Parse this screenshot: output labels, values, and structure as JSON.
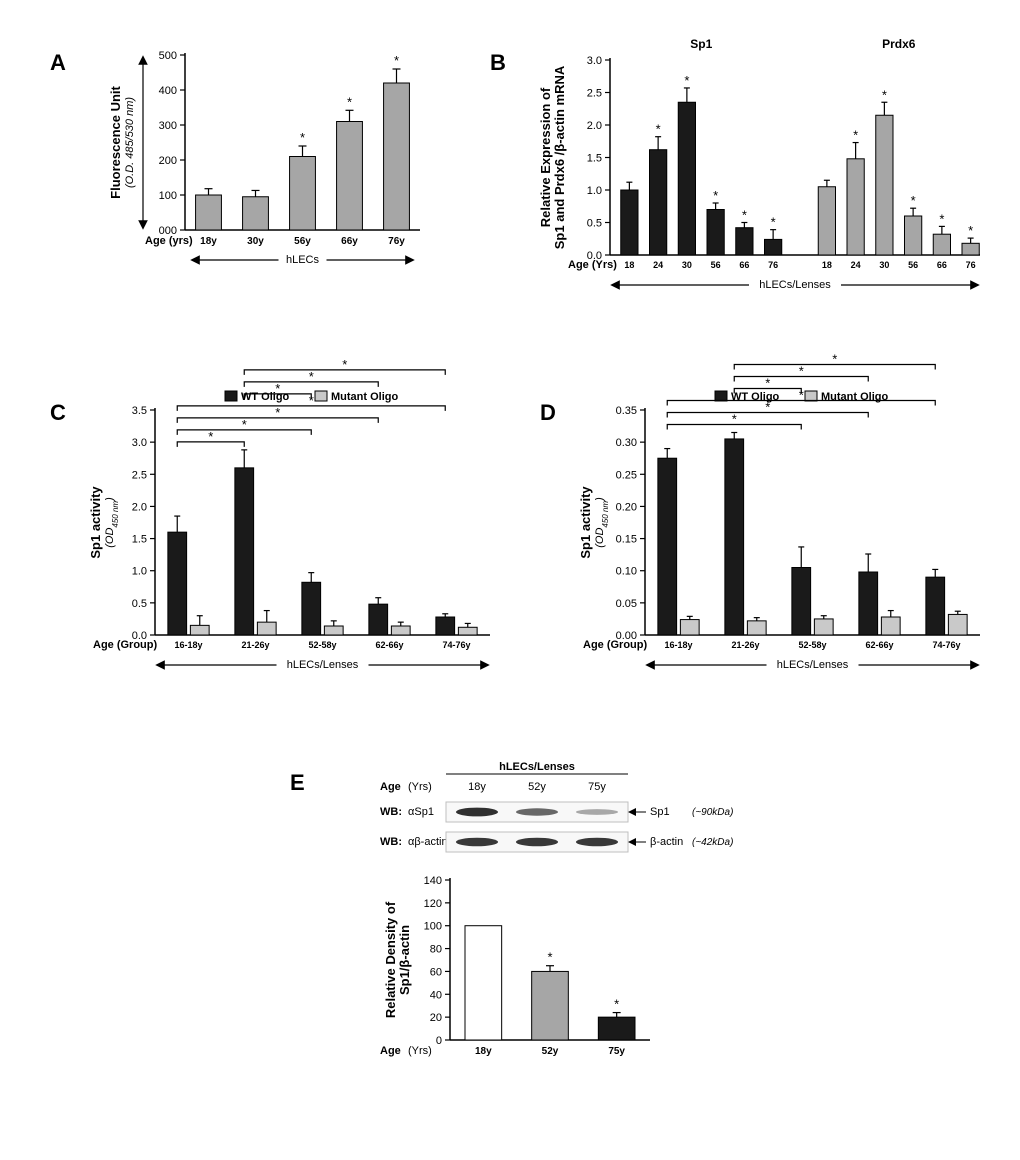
{
  "colors": {
    "gray_bar": "#a6a6a6",
    "black_bar": "#1a1a1a",
    "light_gray_bar": "#c9c9c9",
    "white_bar": "#ffffff",
    "axis": "#000000",
    "bg": "#ffffff"
  },
  "panelA": {
    "label": "A",
    "ylabel": "Fluorescence Unit",
    "ylabel_sub": "(O.D. 485/530 nm)",
    "ylim": [
      0,
      500
    ],
    "ytick_step": 100,
    "x_label": "Age (yrs)",
    "x_sub": "hLECs",
    "categories": [
      "18y",
      "30y",
      "56y",
      "66y",
      "76y"
    ],
    "values": [
      100,
      95,
      210,
      310,
      420
    ],
    "errors": [
      18,
      18,
      30,
      32,
      40
    ],
    "star": [
      false,
      false,
      true,
      true,
      true
    ],
    "bar_color": "#a6a6a6",
    "bar_width": 0.55
  },
  "panelB": {
    "label": "B",
    "ylabel": "Relative Expression of\nSp1 and Prdx6 /β-actin mRNA",
    "ylim": [
      0,
      3.0
    ],
    "ytick_step": 0.5,
    "x_label": "Age (Yrs)",
    "x_sub": "hLECs/Lenses",
    "sub1_title": "Sp1",
    "sub2_title": "Prdx6",
    "categories": [
      "18",
      "24",
      "30",
      "56",
      "66",
      "76"
    ],
    "sp1_values": [
      1.0,
      1.62,
      2.35,
      0.7,
      0.42,
      0.24
    ],
    "sp1_errors": [
      0.12,
      0.2,
      0.22,
      0.1,
      0.08,
      0.15
    ],
    "sp1_star": [
      false,
      true,
      true,
      true,
      true,
      true
    ],
    "prdx6_values": [
      1.05,
      1.48,
      2.15,
      0.6,
      0.32,
      0.18
    ],
    "prdx6_errors": [
      0.1,
      0.25,
      0.2,
      0.12,
      0.12,
      0.08
    ],
    "prdx6_star": [
      false,
      true,
      true,
      true,
      true,
      true
    ],
    "sp1_color": "#1a1a1a",
    "prdx6_color": "#a6a6a6",
    "bar_width": 0.6
  },
  "panelC": {
    "label": "C",
    "ylabel": "Sp1 activity",
    "ylabel_sub_html": "(OD",
    "ylabel_sub_sub": "450 nm",
    "ylabel_sub_close": ")",
    "ylim": [
      0,
      3.5
    ],
    "ytick_step": 0.5,
    "x_label": "Age (Group)",
    "x_sub": "hLECs/Lenses",
    "legend": [
      "WT Oligo",
      "Mutant Oligo"
    ],
    "legend_colors": [
      "#1a1a1a",
      "#c9c9c9"
    ],
    "categories": [
      "16-18y",
      "21-26y",
      "52-58y",
      "62-66y",
      "74-76y"
    ],
    "wt_values": [
      1.6,
      2.6,
      0.82,
      0.48,
      0.28
    ],
    "wt_errors": [
      0.25,
      0.28,
      0.15,
      0.1,
      0.05
    ],
    "mut_values": [
      0.15,
      0.2,
      0.14,
      0.14,
      0.12
    ],
    "mut_errors": [
      0.15,
      0.18,
      0.08,
      0.06,
      0.06
    ],
    "sig_pairs": [
      [
        0,
        1
      ],
      [
        0,
        2
      ],
      [
        0,
        3
      ],
      [
        0,
        4
      ],
      [
        1,
        2
      ],
      [
        1,
        3
      ],
      [
        1,
        4
      ]
    ]
  },
  "panelD": {
    "label": "D",
    "ylabel": "Sp1 activity",
    "ylabel_sub_html": "(OD",
    "ylabel_sub_sub": "450 nm",
    "ylabel_sub_close": ")",
    "ylim": [
      0,
      0.35
    ],
    "ytick_step": 0.05,
    "x_label": "Age (Group)",
    "x_sub": "hLECs/Lenses",
    "legend": [
      "WT Oligo",
      "Mutant Oligo"
    ],
    "legend_colors": [
      "#1a1a1a",
      "#c9c9c9"
    ],
    "categories": [
      "16-18y",
      "21-26y",
      "52-58y",
      "62-66y",
      "74-76y"
    ],
    "wt_values": [
      0.275,
      0.305,
      0.105,
      0.098,
      0.09
    ],
    "wt_errors": [
      0.015,
      0.01,
      0.032,
      0.028,
      0.012
    ],
    "mut_values": [
      0.024,
      0.022,
      0.025,
      0.028,
      0.032
    ],
    "mut_errors": [
      0.005,
      0.005,
      0.005,
      0.01,
      0.005
    ],
    "sig_pairs": [
      [
        0,
        2
      ],
      [
        0,
        3
      ],
      [
        0,
        4
      ],
      [
        1,
        2
      ],
      [
        1,
        3
      ],
      [
        1,
        4
      ]
    ]
  },
  "panelE": {
    "label": "E",
    "header": "hLECs/Lenses",
    "age_label": "Age (Yrs)",
    "ages": [
      "18y",
      "52y",
      "75y"
    ],
    "wb_rows": [
      {
        "label": "WB:",
        "ab": "αSp1",
        "anno": "Sp1 (~90kDa)",
        "intensities": [
          0.95,
          0.6,
          0.2
        ]
      },
      {
        "label": "WB:",
        "ab": "αβ-actin",
        "anno": "β-actin (~42kDa)",
        "intensities": [
          0.9,
          0.9,
          0.9
        ]
      }
    ],
    "chart": {
      "ylabel": "Relative Density of\nSp1/β-actin",
      "ylim": [
        0,
        140
      ],
      "ytick_step": 20,
      "x_label": "Age (Yrs)",
      "categories": [
        "18y",
        "52y",
        "75y"
      ],
      "values": [
        100,
        60,
        20
      ],
      "errors": [
        0,
        5,
        4
      ],
      "colors": [
        "#ffffff",
        "#a6a6a6",
        "#1a1a1a"
      ],
      "star": [
        false,
        true,
        true
      ]
    }
  }
}
